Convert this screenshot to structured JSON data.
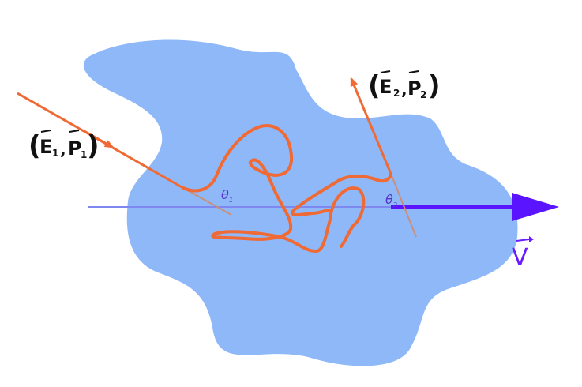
{
  "labels": {
    "in_open": "(",
    "in_E": "E",
    "in_E_sub": "1",
    "in_comma": ",",
    "in_P": "P",
    "in_P_sub": "1",
    "in_close": ")",
    "out_open": "(",
    "out_E": "E",
    "out_E_sub": "2",
    "out_comma": ",",
    "out_P": "P",
    "out_P_sub": "2",
    "out_close": ")",
    "theta1": "θ",
    "theta1_sub": "1",
    "theta2": "θ",
    "theta2_sub": "2",
    "velocity": "V"
  },
  "colors": {
    "blob": "#8fb8f8",
    "track": "#f06a35",
    "axis_line": "#7f88f0",
    "axis_arrow": "#5a14ff",
    "normal_line": "#c98f7c",
    "velocity_label": "#6a1bff"
  }
}
